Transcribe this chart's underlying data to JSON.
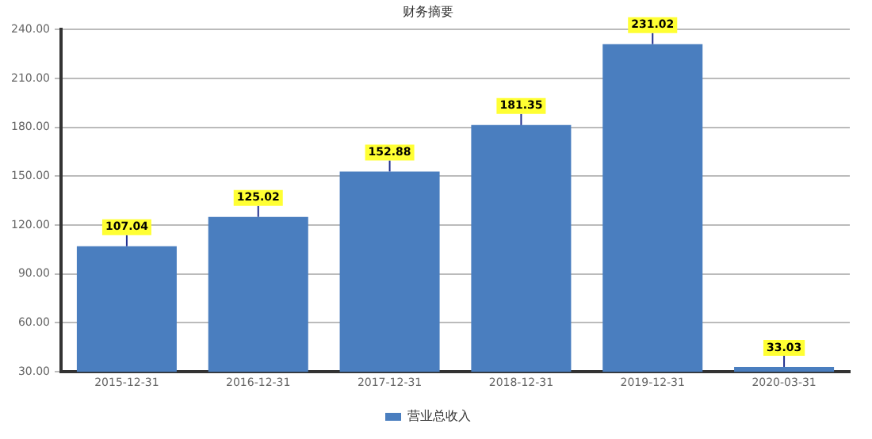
{
  "chart_data": {
    "type": "bar",
    "title": "财务摘要",
    "categories": [
      "2015-12-31",
      "2016-12-31",
      "2017-12-31",
      "2018-12-31",
      "2019-12-31",
      "2020-03-31"
    ],
    "series": [
      {
        "name": "营业总收入",
        "color": "#4a7ebf",
        "values": [
          107.04,
          125.02,
          152.88,
          181.35,
          231.02,
          33.03
        ]
      }
    ],
    "ylim": [
      30,
      240
    ],
    "yticks": [
      {
        "value": 30,
        "label": "30.00"
      },
      {
        "value": 60,
        "label": "60.00"
      },
      {
        "value": 90,
        "label": "90.00"
      },
      {
        "value": 120,
        "label": "120.00"
      },
      {
        "value": 150,
        "label": "150.00"
      },
      {
        "value": 180,
        "label": "180.00"
      },
      {
        "value": 210,
        "label": "210.00"
      },
      {
        "value": 240,
        "label": "240.00"
      }
    ],
    "grid": "y",
    "legend": "bottom",
    "data_labels": true
  }
}
